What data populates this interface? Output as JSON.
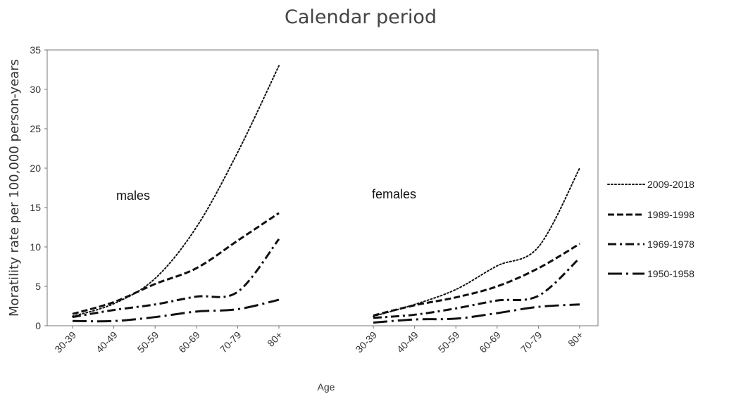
{
  "chart_data": {
    "type": "line",
    "title": "Calendar period",
    "xlabel": "Age",
    "ylabel": "Moratility rate per 100,000 person-years",
    "ylim": [
      0,
      35
    ],
    "yticks": [
      0,
      5,
      10,
      15,
      20,
      25,
      30,
      35
    ],
    "categories": [
      "30-39",
      "40-49",
      "50-59",
      "60-69",
      "70-79",
      "80+"
    ],
    "grid": false,
    "legend_position": "right",
    "panels": [
      {
        "label": "males",
        "series": [
          {
            "name": "2009-2018",
            "dash": "dotted",
            "values": [
              1.2,
              2.8,
              6.0,
              12.5,
              22.0,
              33.0
            ]
          },
          {
            "name": "1989-1998",
            "dash": "dashed",
            "values": [
              1.5,
              3.0,
              5.3,
              7.3,
              10.8,
              14.3
            ]
          },
          {
            "name": "1969-1978",
            "dash": "dash-dot",
            "values": [
              1.1,
              2.0,
              2.7,
              3.7,
              4.3,
              11.0
            ]
          },
          {
            "name": "1950-1958",
            "dash": "long-dash-dot",
            "values": [
              0.6,
              0.6,
              1.1,
              1.8,
              2.1,
              3.3
            ]
          }
        ]
      },
      {
        "label": "females",
        "series": [
          {
            "name": "2009-2018",
            "dash": "dotted",
            "values": [
              1.2,
              2.7,
              4.6,
              7.6,
              10.0,
              20.0
            ]
          },
          {
            "name": "1989-1998",
            "dash": "dashed",
            "values": [
              1.3,
              2.6,
              3.6,
              5.0,
              7.3,
              10.4
            ]
          },
          {
            "name": "1969-1978",
            "dash": "dash-dot",
            "values": [
              1.0,
              1.4,
              2.2,
              3.2,
              3.8,
              8.6
            ]
          },
          {
            "name": "1950-1958",
            "dash": "long-dash-dot",
            "values": [
              0.4,
              0.8,
              0.9,
              1.6,
              2.4,
              2.7
            ]
          }
        ]
      }
    ]
  }
}
